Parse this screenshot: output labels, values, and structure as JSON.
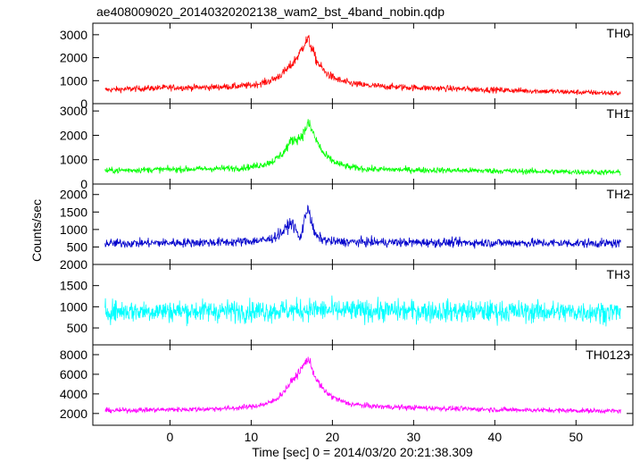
{
  "chart_data": {
    "type": "line",
    "title": "ae408009020_20140320202138_wam2_bst_4band_nobin.qdp",
    "xlabel": "Time [sec] 0 = 2014/03/20 20:21:38.309",
    "ylabel": "Counts/sec",
    "xlim": [
      -9.5,
      57
    ],
    "xticks": [
      0,
      10,
      20,
      30,
      40,
      50
    ],
    "grid": false,
    "panels": [
      {
        "name": "TH0",
        "color": "#ff0000",
        "ylim": [
          0,
          3500
        ],
        "yticks": [
          0,
          1000,
          2000,
          3000
        ],
        "series": {
          "x": [
            -8,
            -4,
            0,
            4,
            8,
            10,
            12,
            13,
            14,
            15,
            16,
            16.5,
            17,
            17.5,
            18,
            19,
            20,
            21,
            22,
            24,
            26,
            30,
            35,
            40,
            45,
            50,
            55.5
          ],
          "values": [
            600,
            650,
            700,
            700,
            750,
            800,
            950,
            1100,
            1350,
            1700,
            2200,
            2600,
            2800,
            2400,
            1900,
            1400,
            1150,
            1000,
            900,
            800,
            750,
            700,
            650,
            600,
            550,
            500,
            450
          ]
        }
      },
      {
        "name": "TH1",
        "color": "#00ff00",
        "ylim": [
          0,
          3300
        ],
        "yticks": [
          0,
          1000,
          2000,
          3000
        ],
        "series": {
          "x": [
            -8,
            -4,
            0,
            4,
            8,
            10,
            12,
            13,
            14,
            15,
            16,
            16.5,
            17,
            17.5,
            18,
            19,
            20,
            21,
            22,
            24,
            26,
            30,
            35,
            40,
            45,
            50,
            55.5
          ],
          "values": [
            550,
            580,
            600,
            620,
            650,
            700,
            850,
            1000,
            1300,
            1800,
            1900,
            2100,
            2500,
            2200,
            1800,
            1200,
            950,
            800,
            700,
            620,
            600,
            580,
            560,
            540,
            520,
            500,
            480
          ]
        }
      },
      {
        "name": "TH2",
        "color": "#0000cc",
        "ylim": [
          0,
          2300
        ],
        "yticks": [
          500,
          1000,
          1500,
          2000
        ],
        "series": {
          "x": [
            -8,
            0,
            8,
            12,
            13,
            14,
            14.5,
            15,
            15.5,
            16,
            16.5,
            17,
            17.5,
            18,
            19,
            20,
            24,
            30,
            40,
            50,
            55.5
          ],
          "values": [
            600,
            620,
            640,
            700,
            800,
            950,
            1100,
            1200,
            1000,
            700,
            1200,
            1700,
            1100,
            800,
            700,
            650,
            640,
            630,
            620,
            610,
            600
          ]
        }
      },
      {
        "name": "TH3",
        "color": "#00ffff",
        "ylim": [
          100,
          2000
        ],
        "yticks": [
          500,
          1000,
          1500,
          2000
        ],
        "series": {
          "x": [
            -8,
            0,
            10,
            16,
            17,
            20,
            30,
            40,
            50,
            55.5
          ],
          "values": [
            900,
            900,
            900,
            920,
            940,
            910,
            900,
            890,
            880,
            880
          ]
        }
      },
      {
        "name": "TH0123",
        "color": "#ff00ff",
        "ylim": [
          800,
          9000
        ],
        "yticks": [
          2000,
          4000,
          6000,
          8000
        ],
        "series": {
          "x": [
            -8,
            -4,
            0,
            4,
            8,
            10,
            12,
            13,
            14,
            15,
            16,
            16.5,
            17,
            17.5,
            18,
            19,
            20,
            21,
            22,
            24,
            26,
            30,
            35,
            40,
            45,
            50,
            55.5
          ],
          "values": [
            2300,
            2350,
            2400,
            2450,
            2550,
            2700,
            3000,
            3400,
            4200,
            5300,
            6300,
            7000,
            7600,
            6600,
            5500,
            4300,
            3700,
            3300,
            3000,
            2800,
            2700,
            2600,
            2500,
            2400,
            2350,
            2300,
            2250
          ]
        }
      }
    ]
  }
}
